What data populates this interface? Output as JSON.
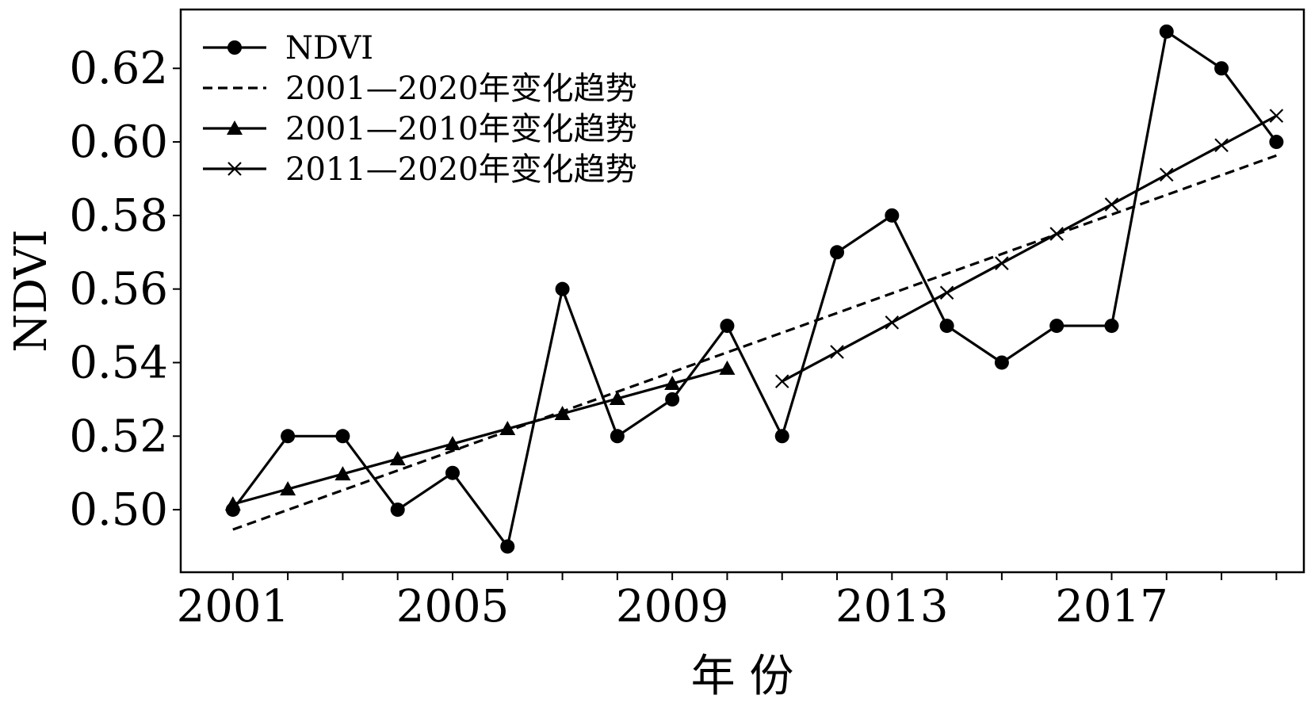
{
  "chart_data": {
    "type": "line",
    "xlabel": "年 份",
    "ylabel": "NDVI",
    "xlim": [
      2000.05,
      2020.5
    ],
    "ylim": [
      0.483,
      0.636
    ],
    "xticks": [
      2001,
      2002,
      2003,
      2004,
      2005,
      2006,
      2007,
      2008,
      2009,
      2010,
      2011,
      2012,
      2013,
      2014,
      2015,
      2016,
      2017,
      2018,
      2019,
      2020
    ],
    "xtick_labels": [
      {
        "x": 2001,
        "label": "2001"
      },
      {
        "x": 2005,
        "label": "2005"
      },
      {
        "x": 2009,
        "label": "2009"
      },
      {
        "x": 2013,
        "label": "2013"
      },
      {
        "x": 2017,
        "label": "2017"
      }
    ],
    "yticks": [
      0.5,
      0.52,
      0.54,
      0.56,
      0.58,
      0.6,
      0.62
    ],
    "ytick_labels": [
      "0.50",
      "0.52",
      "0.54",
      "0.56",
      "0.58",
      "0.60",
      "0.62"
    ],
    "grid": false,
    "legend_position": "top-left",
    "series": [
      {
        "name": "NDVI",
        "style": "solid",
        "marker": "circle",
        "color": "#000000",
        "x": [
          2001,
          2002,
          2003,
          2004,
          2005,
          2006,
          2007,
          2008,
          2009,
          2010,
          2011,
          2012,
          2013,
          2014,
          2015,
          2016,
          2017,
          2018,
          2019,
          2020
        ],
        "y": [
          0.5,
          0.52,
          0.52,
          0.5,
          0.51,
          0.49,
          0.56,
          0.52,
          0.53,
          0.55,
          0.52,
          0.57,
          0.58,
          0.55,
          0.54,
          0.55,
          0.55,
          0.63,
          0.62,
          0.6
        ]
      },
      {
        "name": "2001—2020年变化趋势",
        "style": "dashed",
        "marker": "none",
        "color": "#000000",
        "x": [
          2001,
          2020
        ],
        "y": [
          0.4946,
          0.5963
        ]
      },
      {
        "name": "2001—2010年变化趋势",
        "style": "solid",
        "marker": "triangle",
        "color": "#000000",
        "x": [
          2001,
          2002,
          2003,
          2004,
          2005,
          2006,
          2007,
          2008,
          2009,
          2010
        ],
        "y": [
          0.5015,
          0.5056,
          0.5097,
          0.5138,
          0.5179,
          0.522,
          0.5261,
          0.5302,
          0.5343,
          0.5384
        ]
      },
      {
        "name": "2011—2020年变化趋势",
        "style": "solid",
        "marker": "x",
        "color": "#000000",
        "x": [
          2011,
          2012,
          2013,
          2014,
          2015,
          2016,
          2017,
          2018,
          2019,
          2020
        ],
        "y": [
          0.5349,
          0.5429,
          0.5509,
          0.559,
          0.567,
          0.575,
          0.583,
          0.5911,
          0.5991,
          0.6071
        ]
      }
    ]
  }
}
